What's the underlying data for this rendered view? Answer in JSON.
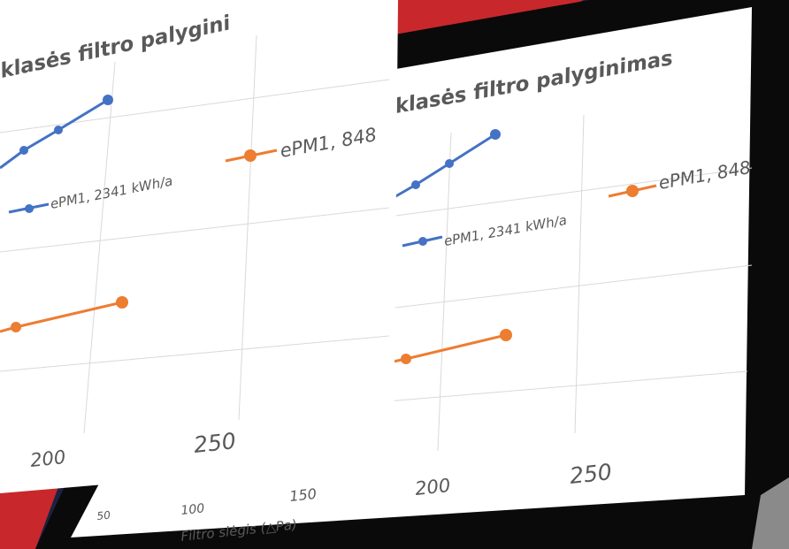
{
  "left_panel": {
    "title": "klasės filtro palygini",
    "legend": [
      "ePM1, 2341 kWh/a",
      "ePM1, 848"
    ],
    "x_ticks": [
      "200",
      "250"
    ]
  },
  "right_panel": {
    "title": "klasės filtro palyginimas",
    "legend": [
      "ePM1, 2341 kWh/a",
      "ePM1, 848"
    ],
    "x_ticks": [
      "50",
      "100",
      "150",
      "200",
      "250"
    ],
    "x_axis_title": "Filtro slėgis (△Pa)"
  }
}
